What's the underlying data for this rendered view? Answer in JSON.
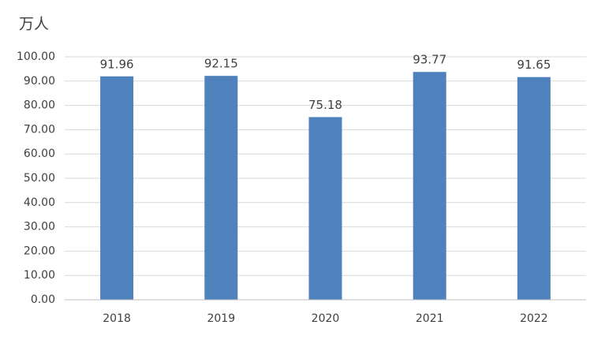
{
  "chart_data": {
    "type": "bar",
    "ylabel": "万人",
    "categories": [
      "2018",
      "2019",
      "2020",
      "2021",
      "2022"
    ],
    "values": [
      91.96,
      92.15,
      75.18,
      93.77,
      91.65
    ],
    "color": "#4f81bd",
    "ylim": [
      0,
      100
    ],
    "yticks": [
      {
        "value": 0,
        "label": "0.00"
      },
      {
        "value": 10,
        "label": "10.00"
      },
      {
        "value": 20,
        "label": "20.00"
      },
      {
        "value": 30,
        "label": "30.00"
      },
      {
        "value": 40,
        "label": "40.00"
      },
      {
        "value": 50,
        "label": "50.00"
      },
      {
        "value": 60,
        "label": "60.00"
      },
      {
        "value": 70,
        "label": "70.00"
      },
      {
        "value": 80,
        "label": "80.00"
      },
      {
        "value": 90,
        "label": "90.00"
      },
      {
        "value": 100,
        "label": "100.00"
      }
    ],
    "grid": true
  }
}
